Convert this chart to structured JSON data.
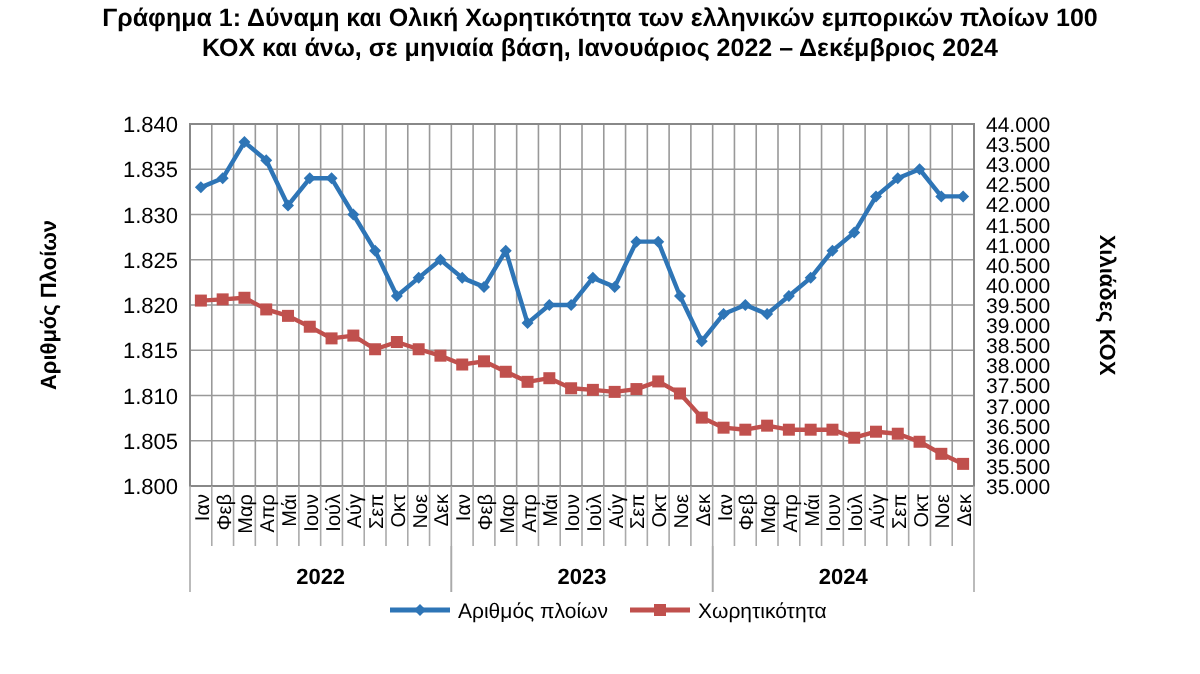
{
  "chart_data": {
    "type": "line",
    "title": "Γράφημα 1: Δύναμη και Ολική Χωρητικότητα των ελληνικών εμπορικών πλοίων 100 ΚΟΧ και άνω, σε μηνιαία βάση, Ιανουάριος 2022 – Δεκέμβριος 2024",
    "categories": [
      "Ιαν",
      "Φεβ",
      "Μαρ",
      "Απρ",
      "Μάι",
      "Ιουν",
      "Ιούλ",
      "Αύγ",
      "Σεπ",
      "Οκτ",
      "Νοε",
      "Δεκ",
      "Ιαν",
      "Φεβ",
      "Μαρ",
      "Απρ",
      "Μάι",
      "Ιουν",
      "Ιούλ",
      "Αύγ",
      "Σεπ",
      "Οκτ",
      "Νοε",
      "Δεκ",
      "Ιαν",
      "Φεβ",
      "Μαρ",
      "Απρ",
      "Μάι",
      "Ιουν",
      "Ιούλ",
      "Αύγ",
      "Σεπ",
      "Οκτ",
      "Νοε",
      "Δεκ"
    ],
    "annotations": [
      "2022",
      "2023",
      "2024"
    ],
    "ylabel": "Αριθμός Πλοίων",
    "y2label": "Χιλιάδες ΚΟΧ",
    "ylim": [
      1.8,
      1.84
    ],
    "yticks": [
      {
        "value": 1.8,
        "label": "1.800"
      },
      {
        "value": 1.805,
        "label": "1.805"
      },
      {
        "value": 1.81,
        "label": "1.810"
      },
      {
        "value": 1.815,
        "label": "1.815"
      },
      {
        "value": 1.82,
        "label": "1.820"
      },
      {
        "value": 1.825,
        "label": "1.825"
      },
      {
        "value": 1.83,
        "label": "1.830"
      },
      {
        "value": 1.835,
        "label": "1.835"
      },
      {
        "value": 1.84,
        "label": "1.840"
      }
    ],
    "y2lim": [
      35000,
      44000
    ],
    "y2ticks": [
      {
        "value": 35000,
        "label": "35.000"
      },
      {
        "value": 35500,
        "label": "35.500"
      },
      {
        "value": 36000,
        "label": "36.000"
      },
      {
        "value": 36500,
        "label": "36.500"
      },
      {
        "value": 37000,
        "label": "37.000"
      },
      {
        "value": 37500,
        "label": "37.500"
      },
      {
        "value": 38000,
        "label": "38.000"
      },
      {
        "value": 38500,
        "label": "38.500"
      },
      {
        "value": 39000,
        "label": "39.000"
      },
      {
        "value": 39500,
        "label": "39.500"
      },
      {
        "value": 40000,
        "label": "40.000"
      },
      {
        "value": 40500,
        "label": "40.500"
      },
      {
        "value": 41000,
        "label": "41.000"
      },
      {
        "value": 41500,
        "label": "41.500"
      },
      {
        "value": 42000,
        "label": "42.000"
      },
      {
        "value": 42500,
        "label": "42.500"
      },
      {
        "value": 43000,
        "label": "43.000"
      },
      {
        "value": 43500,
        "label": "43.500"
      },
      {
        "value": 44000,
        "label": "44.000"
      }
    ],
    "grid": true,
    "legend": "bottom",
    "series": [
      {
        "name": "Αριθμός πλοίων",
        "color": "#2e75b6",
        "marker": "diamond",
        "values": [
          1.833,
          1.834,
          1.838,
          1.836,
          1.831,
          1.834,
          1.834,
          1.83,
          1.826,
          1.821,
          1.823,
          1.825,
          1.823,
          1.822,
          1.826,
          1.818,
          1.82,
          1.82,
          1.823,
          1.822,
          1.827,
          1.827,
          1.821,
          1.816,
          1.819,
          1.82,
          1.819,
          1.821,
          1.823,
          1.826,
          1.828,
          1.832,
          1.834,
          1.835,
          1.832,
          1.832
        ]
      },
      {
        "name": "Χωρητικότητα",
        "color": "#c0504d",
        "marker": "square",
        "axis": "y2",
        "values": [
          39610,
          39640,
          39680,
          39390,
          39230,
          38960,
          38670,
          38740,
          38400,
          38580,
          38400,
          38240,
          38020,
          38100,
          37840,
          37590,
          37680,
          37430,
          37390,
          37340,
          37410,
          37600,
          37300,
          36700,
          36450,
          36400,
          36500,
          36400,
          36400,
          36400,
          36200,
          36350,
          36300,
          36100,
          35800,
          35550
        ]
      }
    ]
  }
}
